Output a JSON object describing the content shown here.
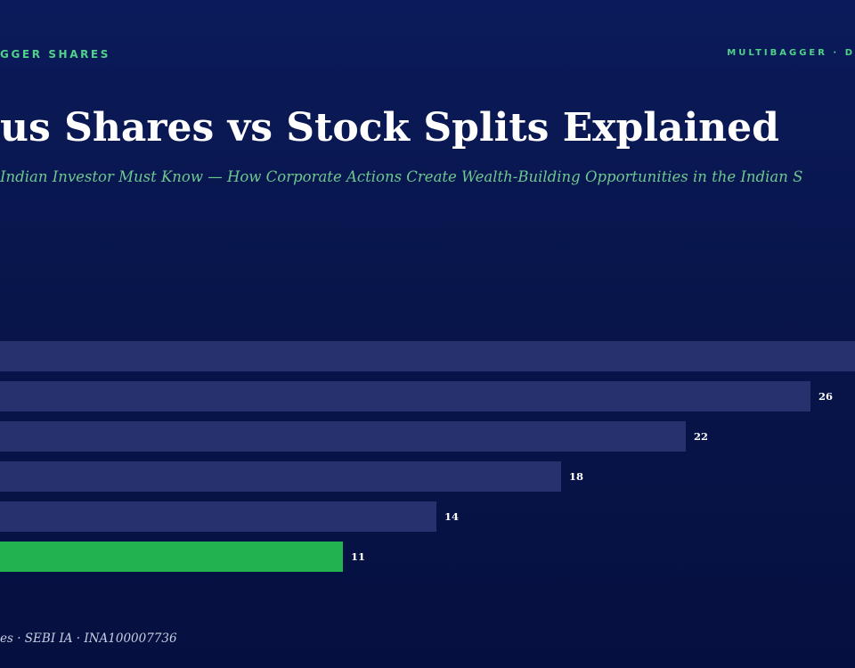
{
  "header": {
    "brand_left": "GGER SHARES",
    "brand_right": "MULTIBAGGER · D"
  },
  "title": "us Shares vs Stock Splits Explained",
  "subtitle": "Indian Investor Must Know — How Corporate Actions Create Wealth-Building Opportunities in the Indian S",
  "footer": "es · SEBI IA · INA100007736",
  "colors": {
    "bar_default": "#27316d",
    "bar_highlight": "#22b24f",
    "value_label": "#ffffff",
    "accent_text": "#4fd38b"
  },
  "chart_data": {
    "type": "bar",
    "orientation": "horizontal",
    "values": [
      30,
      26,
      22,
      18,
      14,
      11
    ],
    "labels": [
      "",
      "26",
      "22",
      "18",
      "14",
      "11"
    ],
    "highlight_index": 5,
    "xlim": [
      0,
      30
    ]
  }
}
